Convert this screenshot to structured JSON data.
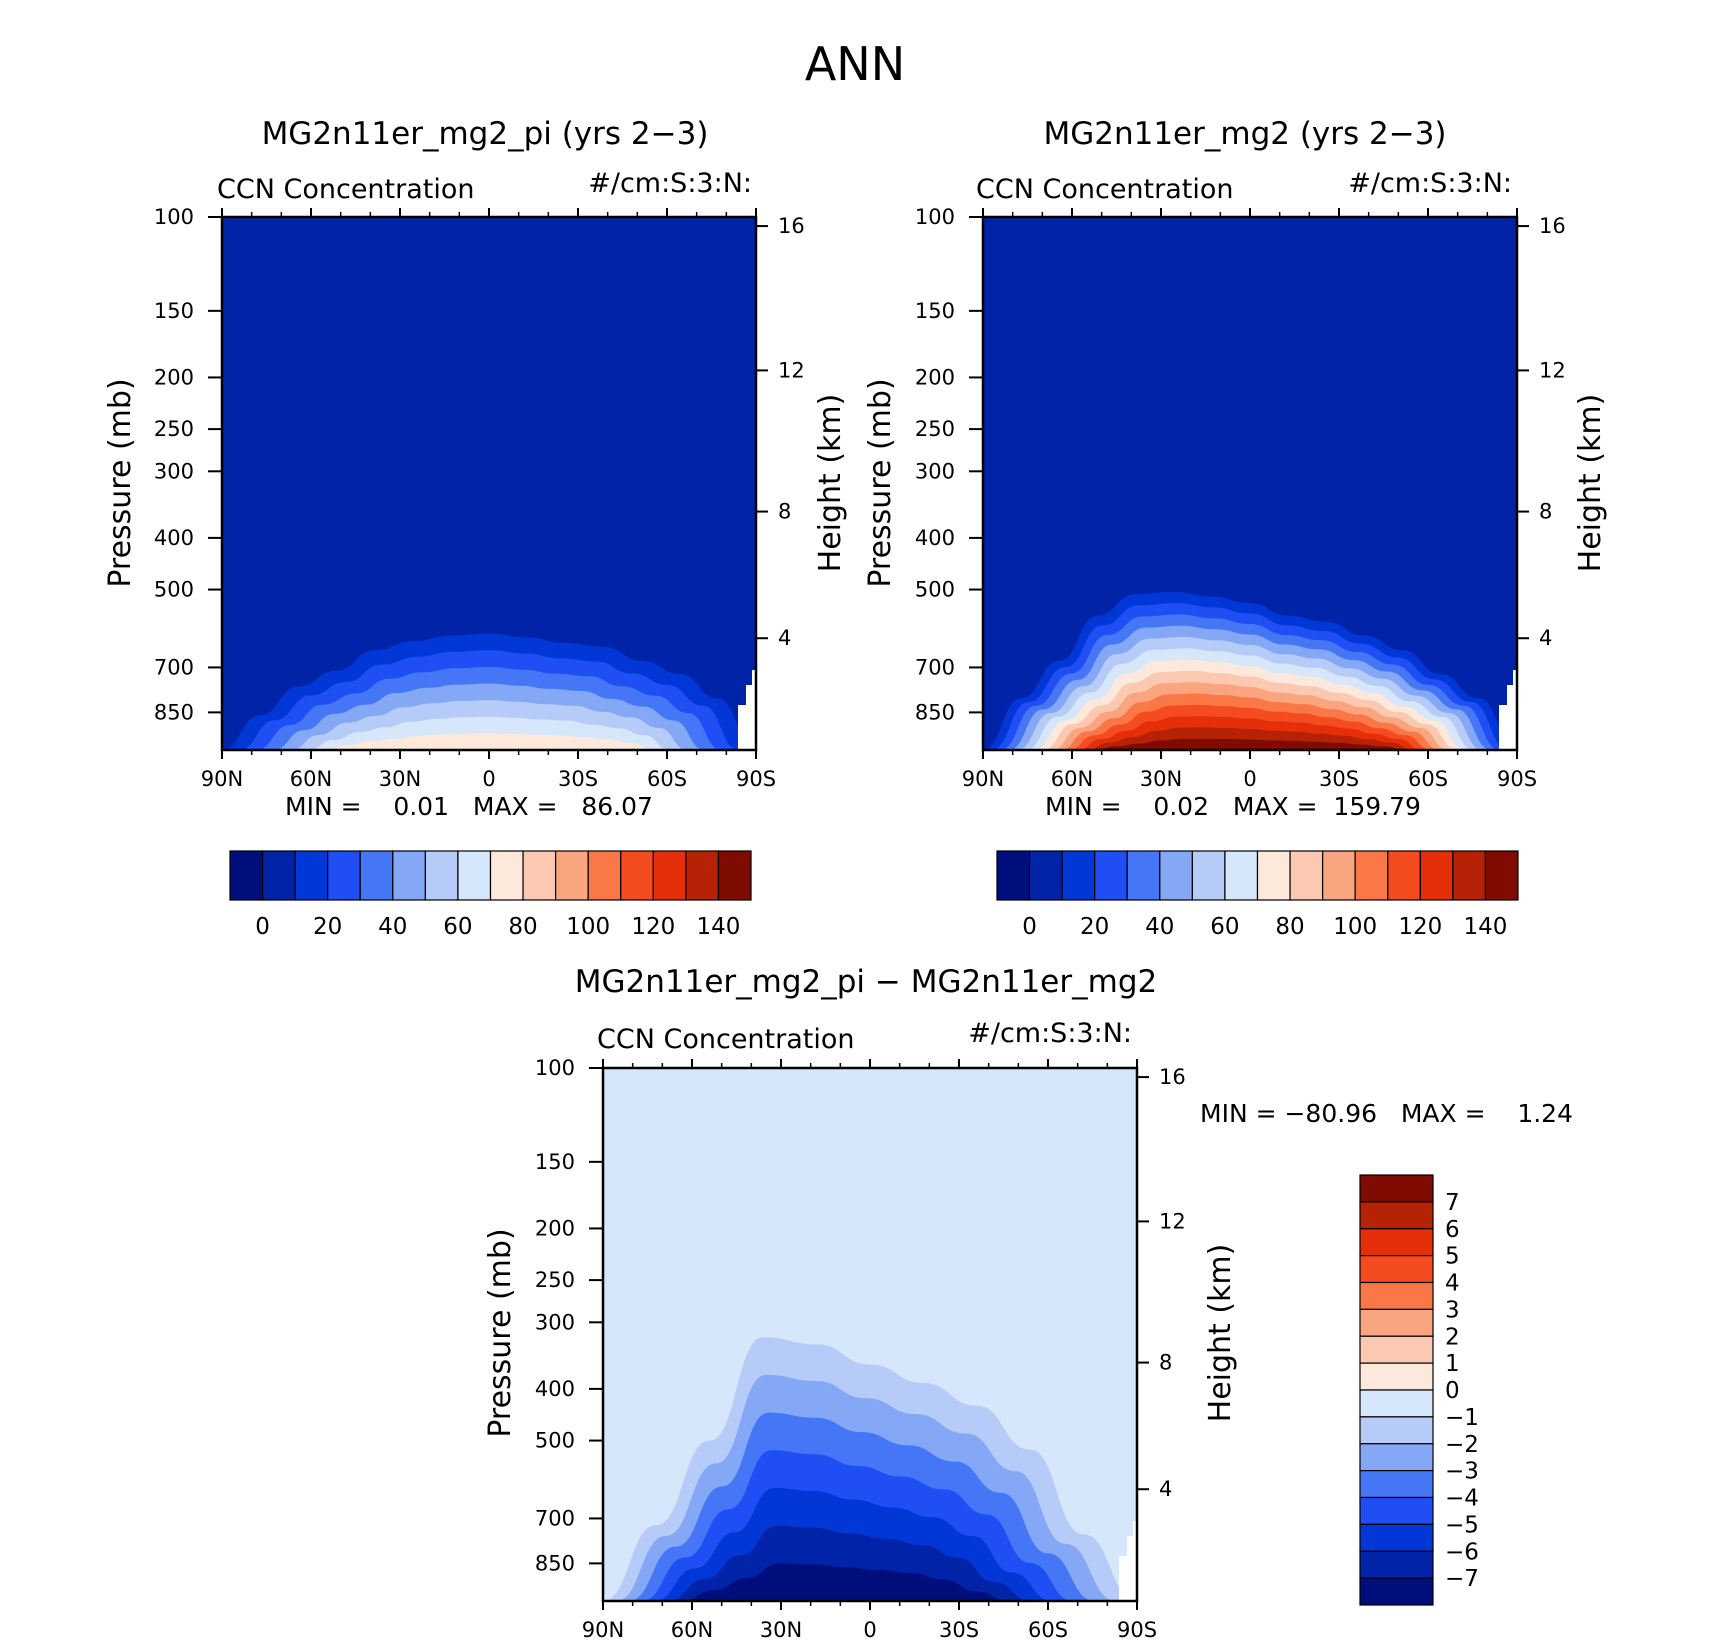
{
  "figure": {
    "title": "ANN"
  },
  "colors": {
    "abs_levels": [
      "#000e7c",
      "#0023a8",
      "#0037d6",
      "#1f4ef5",
      "#4576f5",
      "#84a8f5",
      "#b6cbf7",
      "#d6e6fb",
      "#fde9dc",
      "#fbc9b1",
      "#f9a580",
      "#fa7848",
      "#f54b20",
      "#e52e0a",
      "#b62206",
      "#800b00"
    ],
    "diff_levels": [
      "#000e7c",
      "#0023a8",
      "#0037d6",
      "#1f4ef5",
      "#4576f5",
      "#84a8f5",
      "#b6cbf7",
      "#d6e6fb",
      "#fde9dc",
      "#fbc9b1",
      "#f9a580",
      "#fa7848",
      "#f54b20",
      "#e52e0a",
      "#b62206",
      "#800b00"
    ]
  },
  "chart_data": [
    {
      "type": "contour",
      "panel": "left",
      "title": "MG2n11er_mg2_pi (yrs 2−3)",
      "left_label": "CCN Concentration",
      "right_label": "#/cm:S:3:N:",
      "ylabel": "Pressure (mb)",
      "ylabel_right": "Height (km)",
      "x_ticks": [
        "90N",
        "60N",
        "30N",
        "0",
        "30S",
        "60S",
        "90S"
      ],
      "y_ticks": [
        "100",
        "150",
        "200",
        "250",
        "300",
        "400",
        "500",
        "700",
        "850"
      ],
      "y_ticks_right": [
        "16",
        "12",
        "8",
        "4"
      ],
      "stats": "MIN =    0.01   MAX =   86.07",
      "colorbar_labels": [
        "0",
        "20",
        "40",
        "60",
        "80",
        "100",
        "120",
        "140"
      ],
      "xlim": [
        "90N",
        "90S"
      ],
      "ylim": [
        1000,
        100
      ],
      "contour_levels": [
        0,
        10,
        20,
        30,
        40,
        50,
        60,
        70,
        80,
        90,
        100,
        110,
        120,
        130,
        140
      ],
      "plume_tops_mb": [
        1000,
        860,
        760,
        710,
        650,
        625,
        610,
        605,
        615,
        630,
        640,
        680,
        720,
        800,
        1000
      ],
      "plume_peak_level": 8
    },
    {
      "type": "contour",
      "panel": "right",
      "title": "MG2n11er_mg2 (yrs 2−3)",
      "left_label": "CCN Concentration",
      "right_label": "#/cm:S:3:N:",
      "ylabel": "Pressure (mb)",
      "ylabel_right": "Height (km)",
      "x_ticks": [
        "90N",
        "60N",
        "30N",
        "0",
        "30S",
        "60S",
        "90S"
      ],
      "y_ticks": [
        "100",
        "150",
        "200",
        "250",
        "300",
        "400",
        "500",
        "700",
        "850"
      ],
      "y_ticks_right": [
        "16",
        "12",
        "8",
        "4"
      ],
      "stats": "MIN =    0.02   MAX =  159.79",
      "colorbar_labels": [
        "0",
        "20",
        "40",
        "60",
        "80",
        "100",
        "120",
        "140"
      ],
      "xlim": [
        "90N",
        "90S"
      ],
      "ylim": [
        1000,
        100
      ],
      "contour_levels": [
        0,
        10,
        20,
        30,
        40,
        50,
        60,
        70,
        80,
        90,
        100,
        110,
        120,
        130,
        140
      ],
      "plume_tops_mb": [
        1000,
        800,
        680,
        560,
        510,
        505,
        515,
        530,
        560,
        575,
        610,
        650,
        720,
        800,
        1000
      ],
      "plume_peak_level": 15
    },
    {
      "type": "contour",
      "panel": "difference",
      "title": "MG2n11er_mg2_pi − MG2n11er_mg2",
      "left_label": "CCN Concentration",
      "right_label": "#/cm:S:3:N:",
      "ylabel": "Pressure (mb)",
      "ylabel_right": "Height (km)",
      "x_ticks": [
        "90N",
        "60N",
        "30N",
        "0",
        "30S",
        "60S",
        "90S"
      ],
      "y_ticks": [
        "100",
        "150",
        "200",
        "250",
        "300",
        "400",
        "500",
        "700",
        "850"
      ],
      "y_ticks_right": [
        "16",
        "12",
        "8",
        "4"
      ],
      "stats": "MIN = −80.96   MAX =    1.24",
      "colorbar_labels": [
        "7",
        "6",
        "5",
        "4",
        "3",
        "2",
        "1",
        "0",
        "−1",
        "−2",
        "−3",
        "−4",
        "−5",
        "−6",
        "−7"
      ],
      "xlim": [
        "90N",
        "90S"
      ],
      "ylim": [
        1000,
        100
      ],
      "contour_levels": [
        -7,
        -6,
        -5,
        -4,
        -3,
        -2,
        -1,
        0,
        1,
        2,
        3,
        4,
        5,
        6,
        7
      ],
      "plume_tops_mb": [
        1000,
        720,
        500,
        320,
        330,
        360,
        390,
        430,
        520,
        750,
        1000
      ],
      "plume_min_level": 0
    }
  ]
}
